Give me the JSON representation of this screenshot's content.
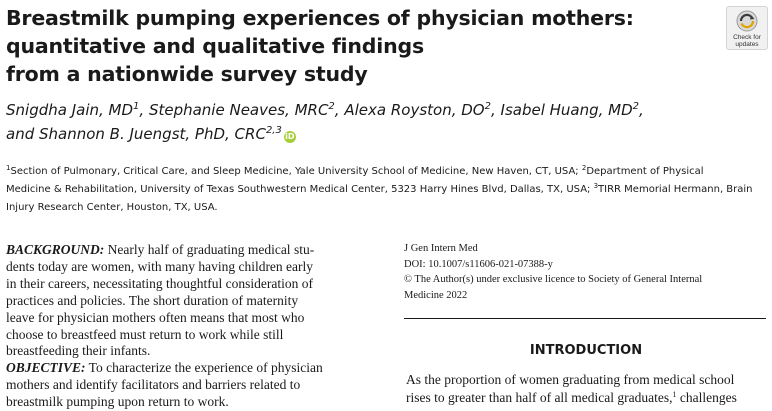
{
  "title": {
    "lines": [
      "Breastmilk pumping experiences of physician mothers:",
      "quantitative and qualitative findings",
      "from a nationwide survey study"
    ]
  },
  "badge": {
    "icon": "check-for-updates-icon",
    "label_line1": "Check for",
    "label_line2": "updates"
  },
  "authors": {
    "line1": [
      {
        "name": "Snigdha Jain, MD",
        "sup": "1",
        "sep": ", "
      },
      {
        "name": "Stephanie Neaves, MRC",
        "sup": "2",
        "sep": ", "
      },
      {
        "name": "Alexa Royston, DO",
        "sup": "2",
        "sep": ", "
      },
      {
        "name": "Isabel Huang, MD",
        "sup": "2",
        "sep": ","
      }
    ],
    "line2": {
      "name": "and Shannon B. Juengst, PhD, CRC",
      "sup": "2,3"
    },
    "orcid_icon": "orcid-icon"
  },
  "affiliations": {
    "line1_sup1": "1",
    "line1_a": "Section of Pulmonary, Critical Care, and Sleep Medicine, Yale University School of Medicine, New Haven, CT, USA; ",
    "line1_sup2": "2",
    "line1_b": "Department of Physical",
    "line2_a": "Medicine & Rehabilitation, University of Texas Southwestern Medical Center, 5323 Harry Hines Blvd, Dallas, TX, USA; ",
    "line2_sup": "3",
    "line2_b": "TIRR Memorial Hermann, Brain",
    "line3": "Injury Research Center, Houston, TX, USA."
  },
  "abstract": {
    "background_label": "BACKGROUND:",
    "background_lines": [
      " Nearly half of graduating medical stu-",
      "dents today are women, with many having children early",
      "in their careers, necessitating thoughtful consideration of",
      "practices and policies. The short duration of maternity",
      "leave for physician mothers often means that most who",
      "choose to breastfeed must return to work while still",
      "breastfeeding their infants."
    ],
    "objective_label": "OBJECTIVE:",
    "objective_lines": [
      " To characterize the experience of physician",
      "mothers and identify facilitators and barriers related to",
      "breastmilk pumping upon return to work."
    ]
  },
  "meta": {
    "journal": "J Gen Intern Med",
    "doi": "DOI: 10.1007/s11606-021-07388-y",
    "copyright_line1": "© The Author(s) under exclusive licence to Society of General Internal",
    "copyright_line2": "Medicine 2022"
  },
  "introduction": {
    "heading": "INTRODUCTION",
    "line1": "As the proportion of women graduating from medical school",
    "line2_a": "rises to greater than half of all medical graduates,",
    "line2_sup": "1",
    "line2_b": " challenges"
  }
}
